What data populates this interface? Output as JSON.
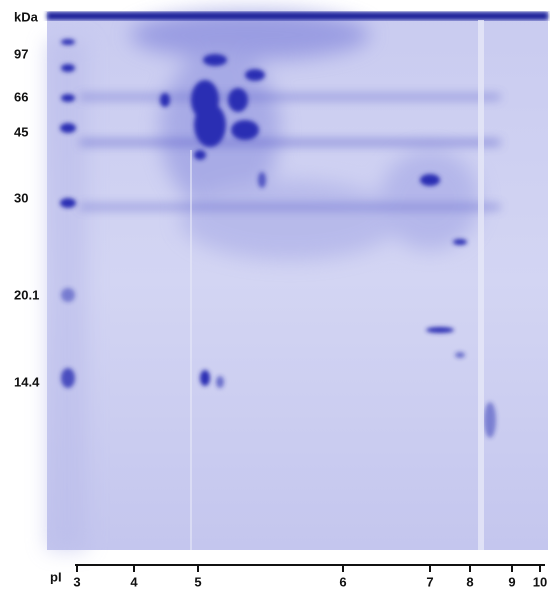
{
  "y_axis": {
    "unit": "kDa",
    "labels": [
      "97",
      "66",
      "45",
      "30",
      "20.1",
      "14.4"
    ]
  },
  "x_axis": {
    "label": "pI",
    "labels": [
      "3",
      "4",
      "5",
      "6",
      "7",
      "8",
      "9",
      "10"
    ]
  }
}
